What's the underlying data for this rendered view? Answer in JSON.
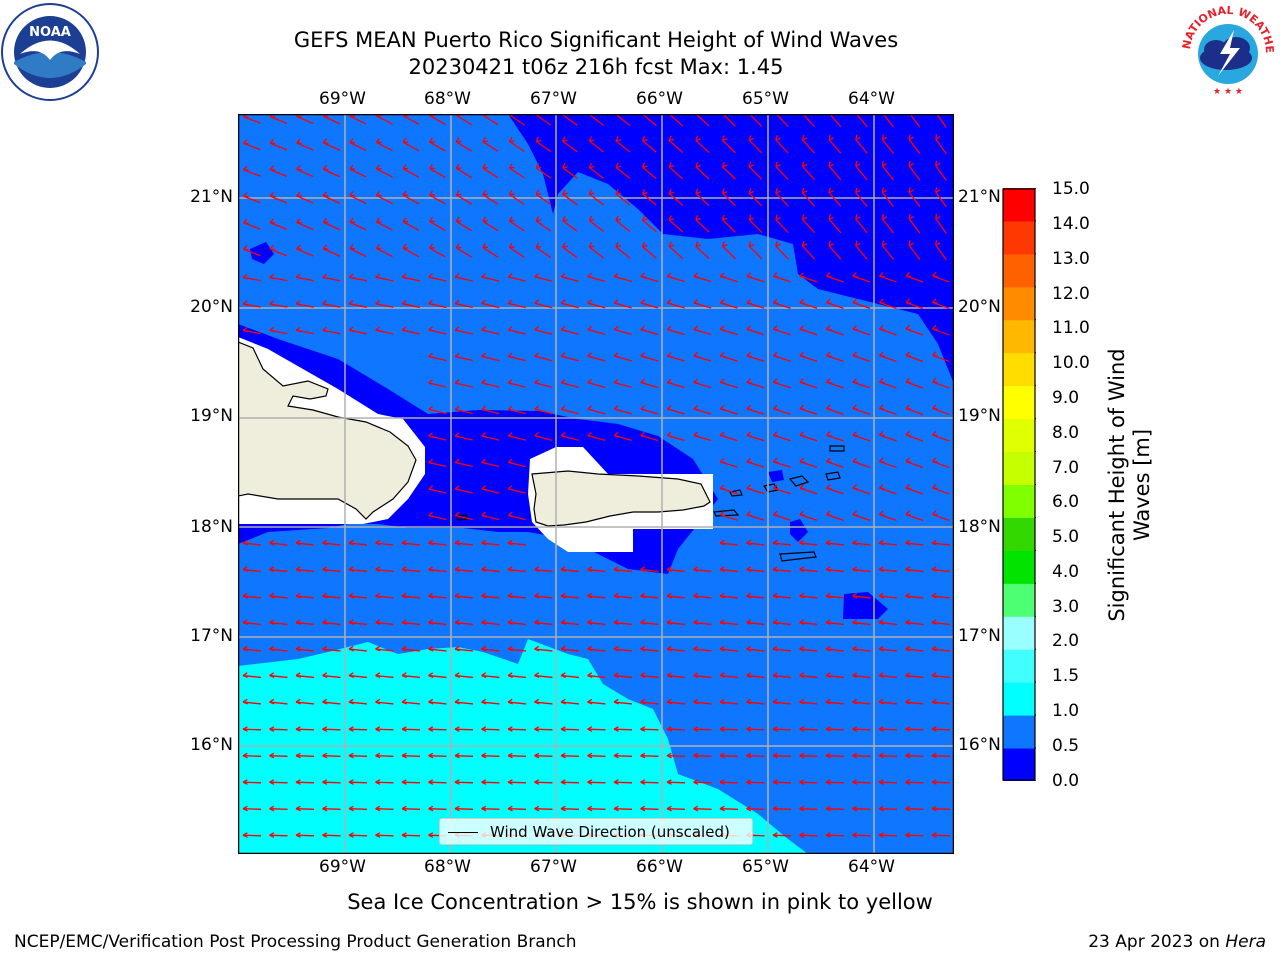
{
  "title": {
    "line1": "GEFS MEAN Puerto Rico Significant Height of Wind Waves",
    "line2": "20230421 t06z 216h fcst   Max: 1.45"
  },
  "axes": {
    "lon_labels": [
      "69°W",
      "68°W",
      "67°W",
      "66°W",
      "65°W",
      "64°W"
    ],
    "lat_labels": [
      "21°N",
      "20°N",
      "19°N",
      "18°N",
      "17°N",
      "16°N"
    ]
  },
  "colorbar": {
    "label": "Significant Height of Wind Waves [m]",
    "label_line1": "Significant Height of Wind",
    "label_line2": "Waves [m]",
    "ticks": [
      "15.0",
      "14.0",
      "13.0",
      "12.0",
      "11.0",
      "10.0",
      "9.0",
      "8.0",
      "7.0",
      "6.0",
      "5.0",
      "4.0",
      "3.0",
      "2.0",
      "1.5",
      "1.0",
      "0.5",
      "0.0"
    ],
    "colors": [
      "#0000ff",
      "#0e76ff",
      "#00ffff",
      "#41ffff",
      "#99ffff",
      "#4cff73",
      "#00e400",
      "#32d800",
      "#7fff00",
      "#c6ff00",
      "#e0ff00",
      "#ffff00",
      "#ffdd00",
      "#ffb800",
      "#ff8c00",
      "#ff6100",
      "#ff3700",
      "#ff0000"
    ]
  },
  "legend": {
    "label": "Wind Wave Direction (unscaled)"
  },
  "footnote": "Sea Ice Concentration > 15% is shown in pink to yellow",
  "credit": "NCEP/EMC/Verification Post Processing Product Generation Branch",
  "date": {
    "text": "23 Apr 2023 on ",
    "host": "Hera"
  },
  "logos": {
    "left": "NOAA",
    "right": "NATIONAL WEATHER SERVICE"
  },
  "map_colors": {
    "land": "#efeddc",
    "arrow": "#ff0000",
    "grid": "#b0b0b0"
  }
}
